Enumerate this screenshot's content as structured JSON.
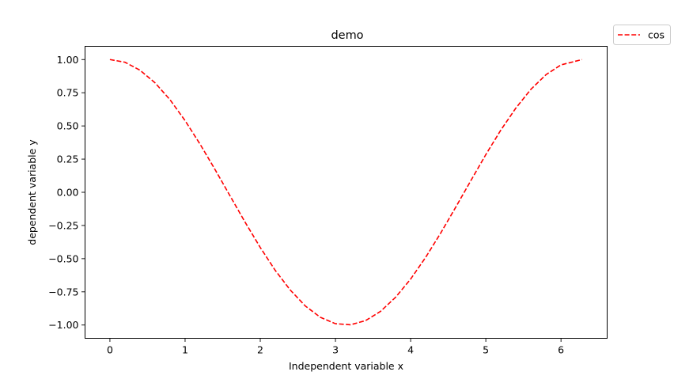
{
  "chart_data": {
    "type": "line",
    "title": "demo",
    "xlabel": "Independent variable x",
    "ylabel": "dependent variable y",
    "xlim": [
      -0.3307,
      6.6139
    ],
    "ylim": [
      -1.1,
      1.1
    ],
    "xticks": [
      0,
      1,
      2,
      3,
      4,
      5,
      6
    ],
    "xtick_labels": [
      "0",
      "1",
      "2",
      "3",
      "4",
      "5",
      "6"
    ],
    "yticks": [
      -1.0,
      -0.75,
      -0.5,
      -0.25,
      0.0,
      0.25,
      0.5,
      0.75,
      1.0
    ],
    "ytick_labels": [
      "−1.00",
      "−0.75",
      "−0.50",
      "−0.25",
      "0.00",
      "0.25",
      "0.50",
      "0.75",
      "1.00"
    ],
    "grid": false,
    "legend_position": "outside-top-right",
    "series": [
      {
        "name": "cos",
        "color": "#ff0000",
        "line_style": "dashed",
        "x": [
          0.0,
          0.2,
          0.4,
          0.6,
          0.8,
          1.0,
          1.2,
          1.4,
          1.6,
          1.8,
          2.0,
          2.2,
          2.4,
          2.6,
          2.8,
          3.0,
          3.2,
          3.4,
          3.6,
          3.8,
          4.0,
          4.2,
          4.4,
          4.6,
          4.8,
          5.0,
          5.2,
          5.4,
          5.6,
          5.8,
          6.0,
          6.28
        ],
        "y": [
          1.0,
          0.98,
          0.92,
          0.825,
          0.697,
          0.54,
          0.362,
          0.17,
          -0.029,
          -0.227,
          -0.416,
          -0.589,
          -0.737,
          -0.857,
          -0.942,
          -0.99,
          -0.998,
          -0.967,
          -0.897,
          -0.791,
          -0.654,
          -0.49,
          -0.307,
          -0.112,
          0.087,
          0.284,
          0.469,
          0.635,
          0.776,
          0.886,
          0.96,
          1.0
        ]
      }
    ]
  }
}
